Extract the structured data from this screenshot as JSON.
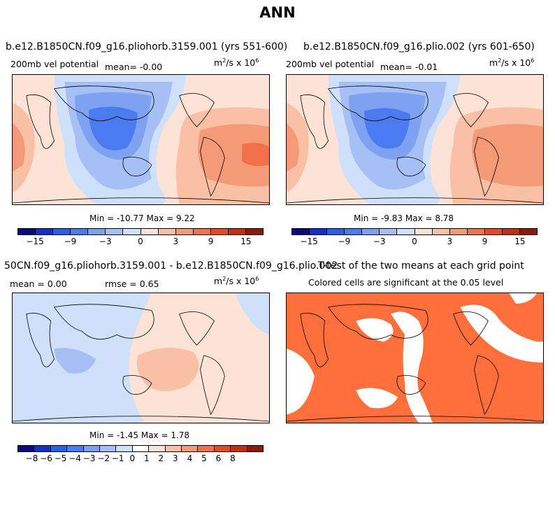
{
  "title": "ANN",
  "panels": [
    {
      "title": "b.e12.B1850CN.f09_g16.pliohorb.3159.001 (yrs 551-600)",
      "variable": "200mb vel potential",
      "mean": "mean=   -0.00",
      "units": "m",
      "units_rest": "/s x 10",
      "units_sup1": "2",
      "units_sup2": "6",
      "minmax": "Min = -10.77 Max =   9.22",
      "ticks": [
        "-15",
        "-9",
        "-3",
        "0",
        "3",
        "9",
        "15"
      ]
    },
    {
      "title": "b.e12.B1850CN.f09_g16.plio.002 (yrs 601-650)",
      "variable": "200mb vel potential",
      "mean": "mean=   -0.01",
      "units": "m",
      "units_rest": "/s x 10",
      "units_sup1": "2",
      "units_sup2": "6",
      "minmax": "Min =  -9.83 Max =   8.78",
      "ticks": [
        "-15",
        "-9",
        "-3",
        "0",
        "3",
        "9",
        "15"
      ]
    },
    {
      "title": "50CN.f09_g16.pliohorb.3159.001 - b.e12.B1850CN.f09_g16.plio.002",
      "mean": "mean =   0.00",
      "rmse": "rmse =   0.65",
      "units": "m",
      "units_rest": "/s x 10",
      "units_sup1": "2",
      "units_sup2": "6",
      "minmax": "Min =  -1.45 Max =   1.78",
      "ticks": [
        "-8",
        "-6",
        "-5",
        "-4",
        "-3",
        "-2",
        "-1",
        "0",
        "1",
        "2",
        "3",
        "4",
        "5",
        "6",
        "8"
      ]
    },
    {
      "title": "T-test of the two means at each grid point",
      "subtitle": "Colored cells are significant at the 0.05 level"
    }
  ],
  "colors": {
    "abs_bar": [
      "#0a0a82",
      "#0f32c8",
      "#2c5fe6",
      "#4a7bf0",
      "#7ea1f2",
      "#a6c0f5",
      "#cfe0fb",
      "#fde3d6",
      "#f9c0a5",
      "#f59a77",
      "#f0714a",
      "#e24b24",
      "#c23010",
      "#8e1a08"
    ],
    "diff_bar": [
      "#0a0a82",
      "#0f32c8",
      "#2c5fe6",
      "#4a7bf0",
      "#7ea1f2",
      "#a6c0f5",
      "#cfe0fb",
      "#ffffff",
      "#fde3d6",
      "#f9c0a5",
      "#f59a77",
      "#f0714a",
      "#e24b24",
      "#c23010",
      "#8e1a08"
    ],
    "significant": "#ff6f3c"
  }
}
